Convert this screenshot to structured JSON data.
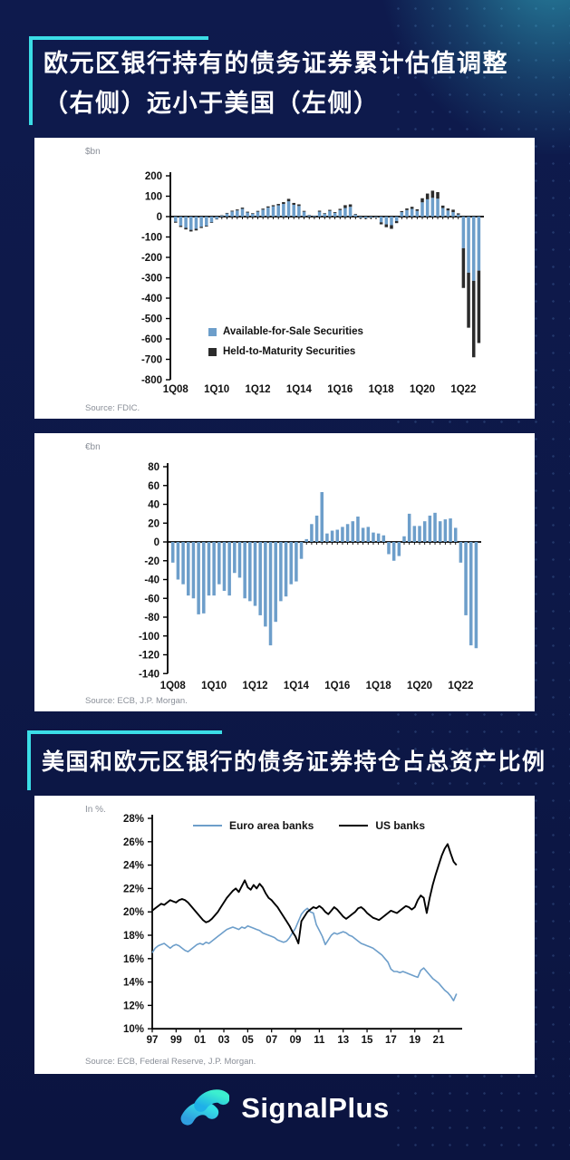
{
  "page": {
    "background": "#0D1847",
    "accent": "#3BDDE6"
  },
  "headers": [
    {
      "line1": "欧元区银行持有的债务证券累计估值调整",
      "line2": "（右侧）远小于美国（左侧）"
    },
    {
      "line1": "美国和欧元区银行的债务证券持仓占总资产比例"
    }
  ],
  "footer": {
    "brand": "SignalPlus"
  },
  "chart_data": [
    {
      "type": "bar",
      "stacked": true,
      "unit": "$bn",
      "source": "Source: FDIC.",
      "ylim": [
        -800,
        200
      ],
      "ytick_step": 100,
      "y_tick_labels": [
        "200",
        "100",
        "0",
        "-100",
        "-200",
        "-300",
        "-400",
        "-500",
        "-600",
        "-700",
        "-800"
      ],
      "x_tick_every": 8,
      "x_tick_labels": [
        "1Q08",
        "1Q10",
        "1Q12",
        "1Q14",
        "1Q16",
        "1Q18",
        "1Q20",
        "1Q22"
      ],
      "categories": [
        "1Q08",
        "2Q08",
        "3Q08",
        "4Q08",
        "1Q09",
        "2Q09",
        "3Q09",
        "4Q09",
        "1Q10",
        "2Q10",
        "3Q10",
        "4Q10",
        "1Q11",
        "2Q11",
        "3Q11",
        "4Q11",
        "1Q12",
        "2Q12",
        "3Q12",
        "4Q12",
        "1Q13",
        "2Q13",
        "3Q13",
        "4Q13",
        "1Q14",
        "2Q14",
        "3Q14",
        "4Q14",
        "1Q15",
        "2Q15",
        "3Q15",
        "4Q15",
        "1Q16",
        "2Q16",
        "3Q16",
        "4Q16",
        "1Q17",
        "2Q17",
        "3Q17",
        "4Q17",
        "1Q18",
        "2Q18",
        "3Q18",
        "4Q18",
        "1Q19",
        "2Q19",
        "3Q19",
        "4Q19",
        "1Q20",
        "2Q20",
        "3Q20",
        "4Q20",
        "1Q21",
        "2Q21",
        "3Q21",
        "4Q21",
        "1Q22",
        "2Q22",
        "3Q22",
        "4Q22"
      ],
      "series": [
        {
          "name": "Available-for-Sale Securities",
          "color": "#6D9ECA",
          "values": [
            -25,
            -45,
            -55,
            -65,
            -60,
            -50,
            -45,
            -28,
            -12,
            5,
            15,
            25,
            30,
            38,
            20,
            14,
            24,
            34,
            44,
            50,
            55,
            62,
            75,
            58,
            52,
            24,
            6,
            4,
            24,
            14,
            28,
            18,
            32,
            42,
            48,
            10,
            -6,
            -8,
            -5,
            -4,
            -28,
            -38,
            -42,
            -22,
            22,
            32,
            38,
            28,
            70,
            85,
            92,
            88,
            42,
            30,
            22,
            10,
            -155,
            -275,
            -315,
            -265
          ]
        },
        {
          "name": "Held-to-Maturity Securities",
          "color": "#2B2B2B",
          "values": [
            -5,
            -6,
            -8,
            -8,
            -8,
            -6,
            -4,
            -3,
            -2,
            2,
            3,
            4,
            5,
            6,
            4,
            3,
            4,
            5,
            6,
            6,
            7,
            9,
            12,
            9,
            8,
            4,
            2,
            1,
            5,
            3,
            5,
            4,
            6,
            14,
            12,
            3,
            -2,
            -3,
            -2,
            -1,
            -10,
            -14,
            -18,
            -10,
            5,
            8,
            10,
            8,
            20,
            28,
            35,
            32,
            12,
            10,
            12,
            6,
            -195,
            -270,
            -375,
            -355
          ]
        }
      ]
    },
    {
      "type": "bar",
      "stacked": false,
      "unit": "€bn",
      "source": "Source: ECB, J.P. Morgan.",
      "ylim": [
        -140,
        80
      ],
      "ytick_step": 20,
      "y_tick_labels": [
        "80",
        "60",
        "40",
        "20",
        "0",
        "-20",
        "-40",
        "-60",
        "-80",
        "-100",
        "-120",
        "-140"
      ],
      "x_tick_every": 8,
      "x_tick_labels": [
        "1Q08",
        "1Q10",
        "1Q12",
        "1Q14",
        "1Q16",
        "1Q18",
        "1Q20",
        "1Q22"
      ],
      "categories": [
        "1Q08",
        "2Q08",
        "3Q08",
        "4Q08",
        "1Q09",
        "2Q09",
        "3Q09",
        "4Q09",
        "1Q10",
        "2Q10",
        "3Q10",
        "4Q10",
        "1Q11",
        "2Q11",
        "3Q11",
        "4Q11",
        "1Q12",
        "2Q12",
        "3Q12",
        "4Q12",
        "1Q13",
        "2Q13",
        "3Q13",
        "4Q13",
        "1Q14",
        "2Q14",
        "3Q14",
        "4Q14",
        "1Q15",
        "2Q15",
        "3Q15",
        "4Q15",
        "1Q16",
        "2Q16",
        "3Q16",
        "4Q16",
        "1Q17",
        "2Q17",
        "3Q17",
        "4Q17",
        "1Q18",
        "2Q18",
        "3Q18",
        "4Q18",
        "1Q19",
        "2Q19",
        "3Q19",
        "4Q19",
        "1Q20",
        "2Q20",
        "3Q20",
        "4Q20",
        "1Q21",
        "2Q21",
        "3Q21",
        "4Q21",
        "1Q22",
        "2Q22",
        "3Q22",
        "4Q22"
      ],
      "series": [
        {
          "color": "#6D9ECA",
          "values": [
            -22,
            -40,
            -45,
            -57,
            -60,
            -77,
            -76,
            -57,
            -57,
            -45,
            -52,
            -57,
            -33,
            -38,
            -60,
            -63,
            -68,
            -78,
            -90,
            -110,
            -85,
            -63,
            -58,
            -45,
            -42,
            -18,
            3,
            19,
            28,
            53,
            9,
            12,
            13,
            16,
            19,
            22,
            27,
            15,
            16,
            10,
            9,
            7,
            -13,
            -20,
            -15,
            6,
            30,
            17,
            17,
            22,
            28,
            31,
            22,
            24,
            25,
            15,
            -22,
            -78,
            -110,
            -113
          ]
        }
      ]
    },
    {
      "type": "line",
      "unit": "In %.",
      "source": "Source: ECB, Federal Reserve, J.P. Morgan.",
      "ylim": [
        10,
        28
      ],
      "ytick_step": 2,
      "y_suffix": "%",
      "y_tick_labels": [
        "28%",
        "26%",
        "24%",
        "22%",
        "20%",
        "18%",
        "16%",
        "14%",
        "12%",
        "10%"
      ],
      "x_start": 1997,
      "x_step": 0.25,
      "x_tick_years": [
        1997,
        1999,
        2001,
        2003,
        2005,
        2007,
        2009,
        2011,
        2013,
        2015,
        2017,
        2019,
        2021
      ],
      "x_tick_labels": [
        "97",
        "99",
        "01",
        "03",
        "05",
        "07",
        "09",
        "11",
        "13",
        "15",
        "17",
        "19",
        "21"
      ],
      "legend_position": "top",
      "series": [
        {
          "name": "Euro area banks",
          "color": "#6D9ECA",
          "values": [
            16.5,
            16.9,
            17.1,
            17.2,
            17.3,
            17.1,
            16.9,
            17.1,
            17.2,
            17.1,
            16.9,
            16.7,
            16.6,
            16.8,
            17.0,
            17.2,
            17.3,
            17.2,
            17.4,
            17.3,
            17.5,
            17.7,
            17.9,
            18.1,
            18.3,
            18.5,
            18.6,
            18.7,
            18.6,
            18.5,
            18.7,
            18.6,
            18.8,
            18.7,
            18.6,
            18.5,
            18.4,
            18.2,
            18.1,
            18.0,
            17.9,
            17.8,
            17.6,
            17.5,
            17.4,
            17.5,
            17.8,
            18.2,
            18.6,
            19.2,
            19.8,
            20.1,
            20.3,
            20.0,
            19.9,
            18.9,
            18.4,
            17.9,
            17.2,
            17.6,
            18.0,
            18.2,
            18.1,
            18.2,
            18.3,
            18.2,
            18.0,
            17.9,
            17.7,
            17.5,
            17.3,
            17.2,
            17.1,
            17.0,
            16.9,
            16.7,
            16.5,
            16.3,
            16.0,
            15.7,
            15.1,
            14.9,
            14.9,
            14.8,
            14.9,
            14.8,
            14.7,
            14.6,
            14.5,
            14.4,
            15.0,
            15.2,
            14.9,
            14.6,
            14.3,
            14.1,
            13.9,
            13.6,
            13.3,
            13.1,
            12.8,
            12.4,
            13.0
          ]
        },
        {
          "name": "US banks",
          "color": "#000000",
          "values": [
            20.1,
            20.3,
            20.5,
            20.7,
            20.6,
            20.8,
            21.0,
            20.9,
            20.8,
            21.0,
            21.1,
            21.0,
            20.8,
            20.5,
            20.2,
            19.9,
            19.6,
            19.3,
            19.1,
            19.2,
            19.4,
            19.7,
            20.0,
            20.4,
            20.8,
            21.2,
            21.5,
            21.8,
            22.0,
            21.7,
            22.2,
            22.7,
            22.1,
            21.9,
            22.3,
            22.0,
            22.4,
            22.1,
            21.6,
            21.2,
            21.0,
            20.7,
            20.4,
            20.0,
            19.6,
            19.2,
            18.8,
            18.3,
            17.9,
            17.3,
            19.2,
            19.6,
            20.0,
            20.2,
            20.4,
            20.3,
            20.5,
            20.3,
            20.0,
            19.8,
            20.1,
            20.4,
            20.2,
            19.9,
            19.6,
            19.4,
            19.6,
            19.8,
            20.0,
            20.3,
            20.4,
            20.2,
            19.9,
            19.7,
            19.5,
            19.4,
            19.3,
            19.5,
            19.7,
            19.9,
            20.1,
            20.0,
            19.9,
            20.1,
            20.3,
            20.5,
            20.4,
            20.2,
            20.4,
            21.0,
            21.4,
            21.2,
            19.9,
            21.2,
            22.3,
            23.2,
            24.0,
            24.8,
            25.4,
            25.8,
            25.0,
            24.3,
            24.0
          ]
        }
      ]
    }
  ]
}
